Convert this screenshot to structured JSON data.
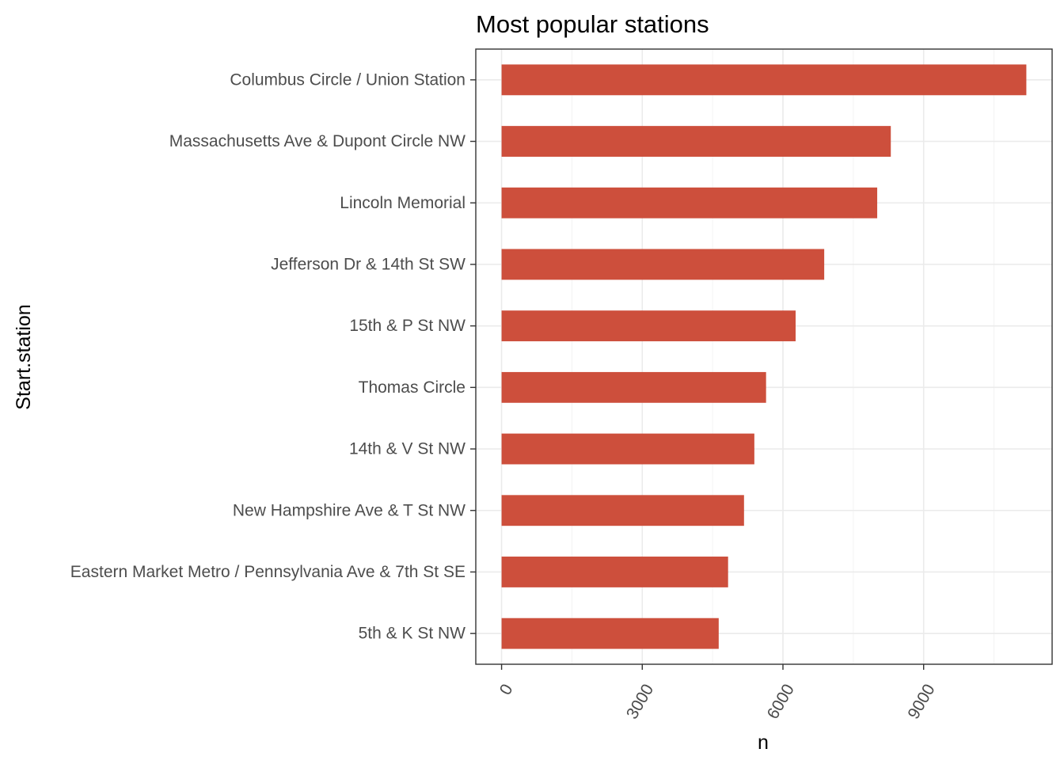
{
  "chart_data": {
    "type": "bar",
    "orientation": "horizontal",
    "title": "Most popular stations",
    "xlabel": "n",
    "ylabel": "Start.station",
    "categories": [
      "Columbus Circle / Union Station",
      "Massachusetts Ave & Dupont Circle NW",
      "Lincoln Memorial",
      "Jefferson Dr & 14th St SW",
      "15th & P St NW",
      "Thomas Circle",
      "14th & V St NW",
      "New Hampshire Ave & T St NW",
      "Eastern Market Metro / Pennsylvania Ave & 7th St SE",
      "5th & K St NW"
    ],
    "values": [
      11190,
      8300,
      8010,
      6880,
      6270,
      5640,
      5390,
      5170,
      4830,
      4630
    ],
    "xlim": [
      -550,
      11740
    ],
    "xticks": [
      0,
      3000,
      6000,
      9000
    ],
    "xtick_labels": [
      "0",
      "3000",
      "6000",
      "9000"
    ],
    "xtick_label_rotation": -60,
    "grid": true,
    "legend": "none",
    "colors": {
      "bar": "#CD4F3C",
      "grid_major": "#EBEBEB",
      "grid_minor": "#F4F4F4",
      "panel_border": "#333333",
      "tick_text": "#4D4D4D",
      "title_text": "#000000"
    }
  }
}
